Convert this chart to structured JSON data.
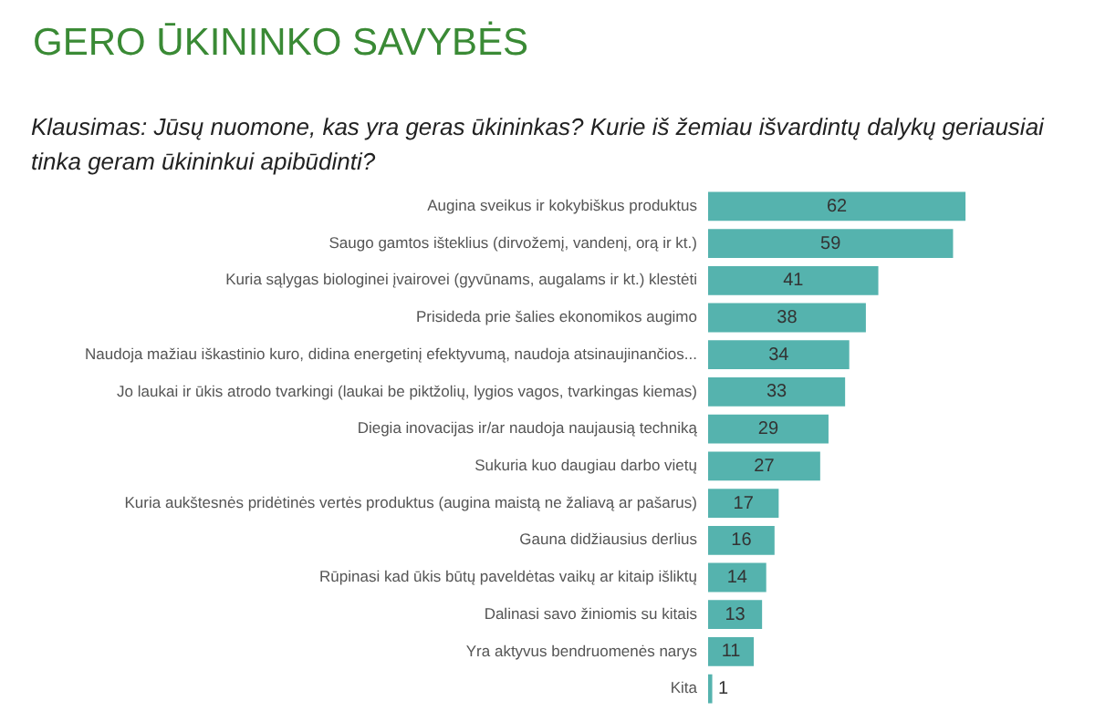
{
  "chart_data": {
    "type": "bar",
    "orientation": "horizontal",
    "title": "GERO ŪKININKO SAVYBĖS",
    "subtitle": "Klausimas: Jūsų nuomone, kas yra geras ūkininkas? Kurie iš žemiau išvardintų dalykų geriausiai tinka geram ūkininkui apibūdinti?",
    "categories": [
      "Augina sveikus ir kokybiškus produktus",
      "Saugo gamtos išteklius (dirvožemį, vandenį, orą ir kt.)",
      "Kuria sąlygas biologinei įvairovei (gyvūnams, augalams ir kt.) klestėti",
      "Prisideda prie šalies ekonomikos augimo",
      "Naudoja mažiau iškastinio kuro, didina energetinį efektyvumą, naudoja atsinaujinančios...",
      "Jo laukai ir ūkis atrodo tvarkingi (laukai be piktžolių, lygios vagos, tvarkingas kiemas)",
      "Diegia inovacijas ir/ar naudoja naujausią techniką",
      "Sukuria kuo daugiau darbo vietų",
      "Kuria aukštesnės pridėtinės vertės produktus (augina maistą ne žaliavą ar pašarus)",
      "Gauna didžiausius derlius",
      "Rūpinasi kad ūkis būtų paveldėtas vaikų ar kitaip išliktų",
      "Dalinasi savo žiniomis su kitais",
      "Yra aktyvus bendruomenės narys",
      "Kita"
    ],
    "values": [
      62,
      59,
      41,
      38,
      34,
      33,
      29,
      27,
      17,
      16,
      14,
      13,
      11,
      1
    ],
    "color": "#55b3ae",
    "data_labels": true
  }
}
